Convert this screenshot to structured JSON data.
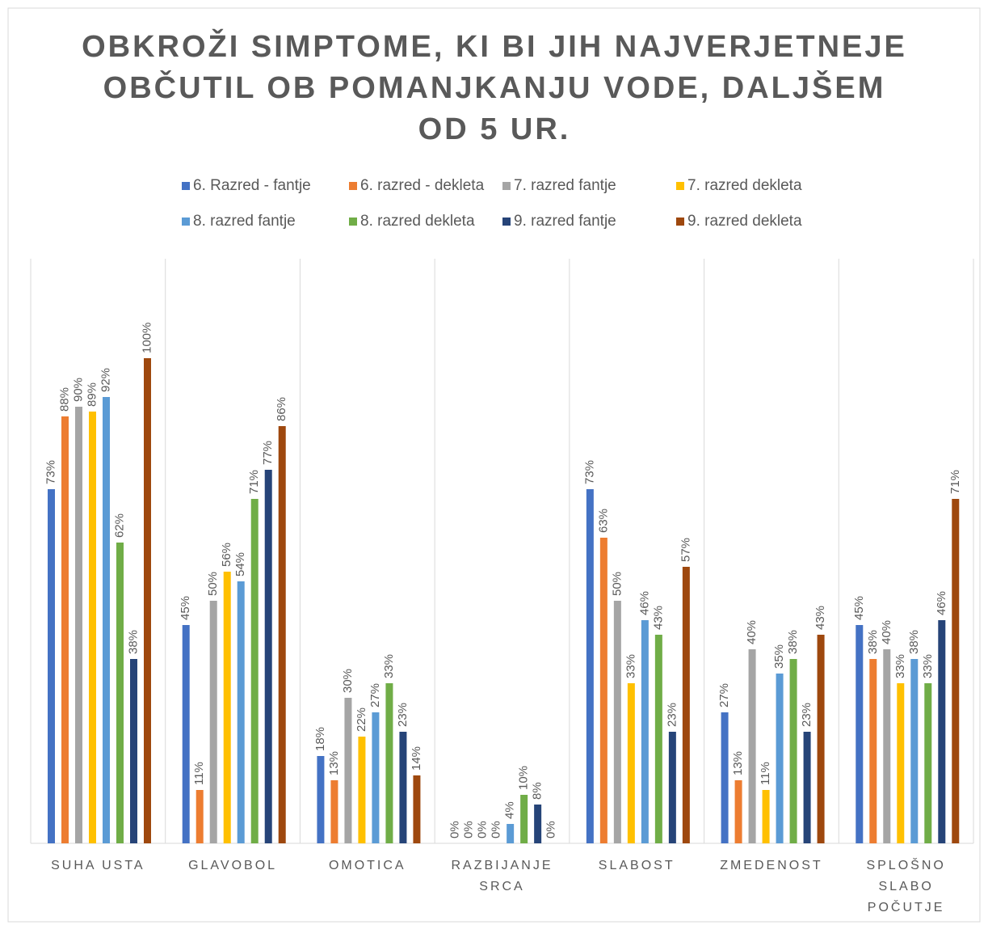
{
  "chart_data": {
    "type": "bar",
    "title": [
      "OBKROŽI SIMPTOME, KI BI JIH NAJVERJETNEJE",
      "OBČUTIL OB POMANJKANJU VODE, DALJŠEM",
      "OD 5 UR."
    ],
    "categories": [
      "SUHA USTA",
      "GLAVOBOL",
      "OMOTICA",
      "RAZBIJANJE SRCA",
      "SLABOST",
      "ZMEDENOST",
      "SPLOŠNO SLABO POČUTJE"
    ],
    "series": [
      {
        "name": "6. Razred - fantje",
        "color": "#4472c4",
        "values": [
          73,
          45,
          18,
          0,
          73,
          27,
          45
        ],
        "value_labels": [
          "73%",
          "45%",
          "18%",
          "0%",
          "73%",
          "27%",
          "45%"
        ]
      },
      {
        "name": "6. razred - dekleta",
        "color": "#ed7d31",
        "values": [
          88,
          11,
          13,
          0,
          63,
          13,
          38
        ],
        "value_labels": [
          "88%",
          "11%",
          "13%",
          "0%",
          "63%",
          "13%",
          "38%"
        ]
      },
      {
        "name": "7. razred fantje",
        "color": "#a5a5a5",
        "values": [
          90,
          50,
          30,
          0,
          50,
          40,
          40
        ],
        "value_labels": [
          "90%",
          "50%",
          "30%",
          "0%",
          "50%",
          "40%",
          "40%"
        ]
      },
      {
        "name": "7. razred dekleta",
        "color": "#ffc000",
        "values": [
          89,
          56,
          22,
          0,
          33,
          11,
          33
        ],
        "value_labels": [
          "89%",
          "56%",
          "22%",
          "0%",
          "33%",
          "11%",
          "33%"
        ]
      },
      {
        "name": "8. razred fantje",
        "color": "#5b9bd5",
        "values": [
          92,
          54,
          27,
          4,
          46,
          35,
          38
        ],
        "value_labels": [
          "92%",
          "54%",
          "27%",
          "4%",
          "46%",
          "35%",
          "38%"
        ]
      },
      {
        "name": "8. razred dekleta",
        "color": "#70ad47",
        "values": [
          62,
          71,
          33,
          10,
          43,
          38,
          33
        ],
        "value_labels": [
          "62%",
          "71%",
          "33%",
          "10%",
          "43%",
          "38%",
          "33%"
        ]
      },
      {
        "name": "9. razred fantje",
        "color": "#264478",
        "values": [
          38,
          77,
          23,
          8,
          23,
          23,
          46
        ],
        "value_labels": [
          "38%",
          "77%",
          "23%",
          "8%",
          "23%",
          "23%",
          "46%"
        ]
      },
      {
        "name": "9. razred dekleta",
        "color": "#9e480e",
        "values": [
          100,
          86,
          14,
          0,
          57,
          43,
          71
        ],
        "value_labels": [
          "100%",
          "86%",
          "14%",
          "0%",
          "57%",
          "43%",
          "71%"
        ]
      }
    ]
  }
}
